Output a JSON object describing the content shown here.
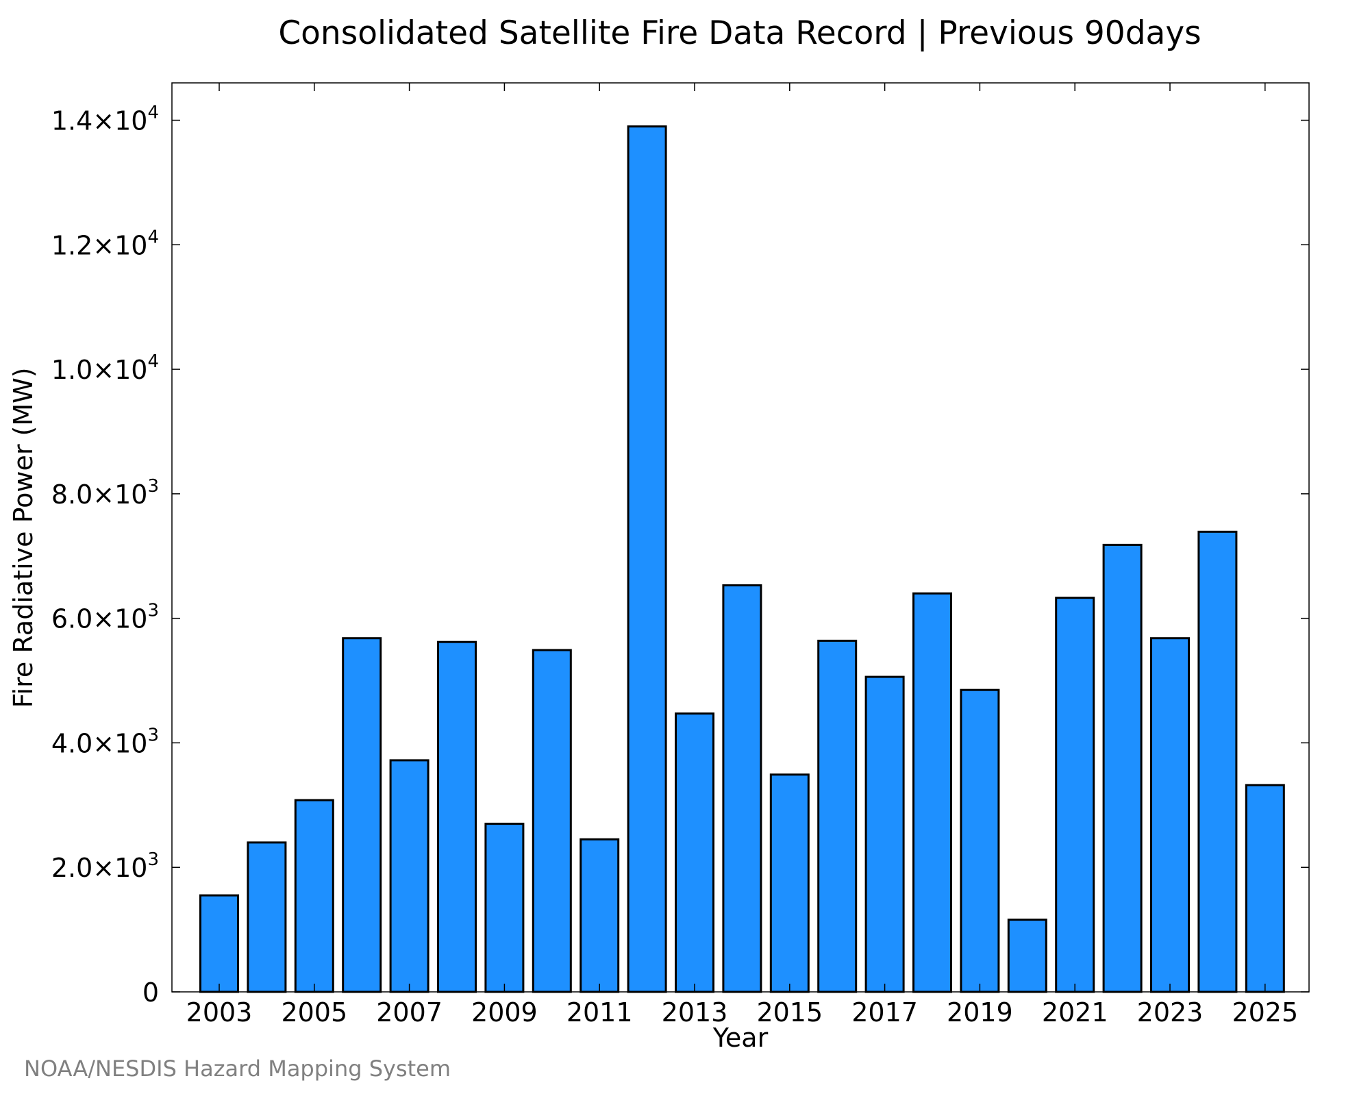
{
  "chart_data": {
    "type": "bar",
    "title": "Consolidated Satellite Fire Data Record | Previous 90days",
    "xlabel": "Year",
    "ylabel": "Fire Radiative Power (MW)",
    "categories": [
      "2003",
      "2004",
      "2005",
      "2006",
      "2007",
      "2008",
      "2009",
      "2010",
      "2011",
      "2012",
      "2013",
      "2014",
      "2015",
      "2016",
      "2017",
      "2018",
      "2019",
      "2020",
      "2021",
      "2022",
      "2023",
      "2024",
      "2025"
    ],
    "values": [
      1550,
      2400,
      3080,
      5680,
      3720,
      5620,
      2700,
      5490,
      2450,
      13900,
      4470,
      6530,
      3490,
      5640,
      5060,
      6400,
      4850,
      1160,
      6330,
      7180,
      5680,
      7390,
      3320
    ],
    "x_tick_labels": [
      "2003",
      "2005",
      "2007",
      "2009",
      "2011",
      "2013",
      "2015",
      "2017",
      "2019",
      "2021",
      "2023",
      "2025"
    ],
    "y_ticks": [
      {
        "value": 0,
        "mantissa": "0",
        "exp": ""
      },
      {
        "value": 2000,
        "mantissa": "2.0×10",
        "exp": "3"
      },
      {
        "value": 4000,
        "mantissa": "4.0×10",
        "exp": "3"
      },
      {
        "value": 6000,
        "mantissa": "6.0×10",
        "exp": "3"
      },
      {
        "value": 8000,
        "mantissa": "8.0×10",
        "exp": "3"
      },
      {
        "value": 10000,
        "mantissa": "1.0×10",
        "exp": "4"
      },
      {
        "value": 12000,
        "mantissa": "1.2×10",
        "exp": "4"
      },
      {
        "value": 14000,
        "mantissa": "1.4×10",
        "exp": "4"
      }
    ],
    "ylim": [
      0,
      14600
    ],
    "grid": false,
    "bar_color": "#1E90FF",
    "edge_color": "#000000",
    "footer": "NOAA/NESDIS Hazard Mapping System"
  }
}
